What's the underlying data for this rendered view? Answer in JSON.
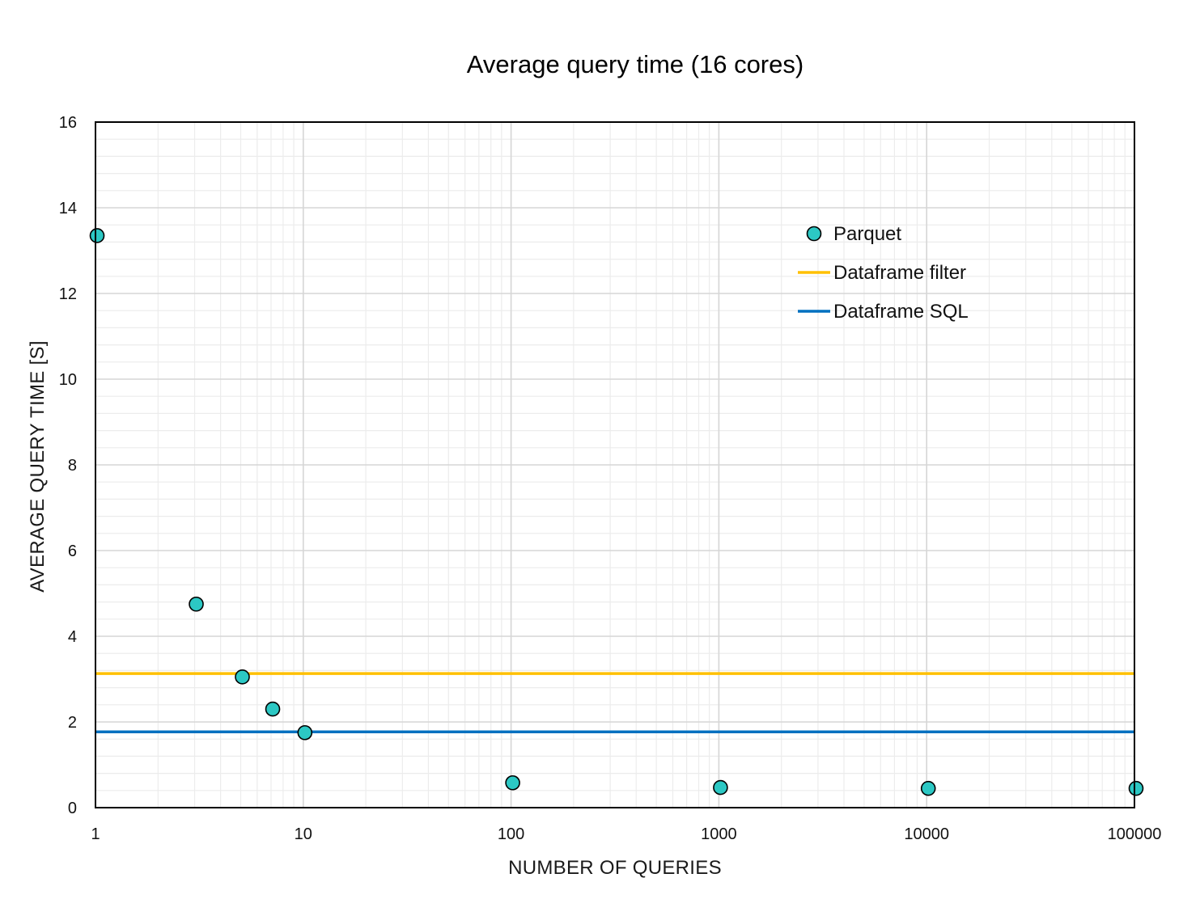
{
  "chart_data": {
    "type": "scatter",
    "title": "Average query time (16 cores)",
    "xlabel": "NUMBER OF QUERIES",
    "ylabel": "AVERAGE QUERY TIME [S]",
    "x_scale": "log",
    "xlim": [
      1,
      100000
    ],
    "ylim": [
      0,
      16
    ],
    "x_ticks": [
      "1",
      "10",
      "100",
      "1000",
      "10000",
      "100000"
    ],
    "y_ticks": [
      "0",
      "2",
      "4",
      "6",
      "8",
      "10",
      "12",
      "14",
      "16"
    ],
    "grid": true,
    "legend_position": "upper-right",
    "series": [
      {
        "name": "Parquet",
        "kind": "markers",
        "color": "#2cc8c4",
        "x": [
          1,
          3,
          5,
          7,
          10,
          100,
          1000,
          10000,
          100000
        ],
        "y": [
          13.35,
          4.75,
          3.05,
          2.3,
          1.75,
          0.58,
          0.47,
          0.45,
          0.45
        ]
      },
      {
        "name": "Dataframe filter",
        "kind": "hline",
        "color": "#ffc000",
        "y": 3.13
      },
      {
        "name": "Dataframe SQL",
        "kind": "hline",
        "color": "#0070c0",
        "y": 1.77
      }
    ]
  }
}
